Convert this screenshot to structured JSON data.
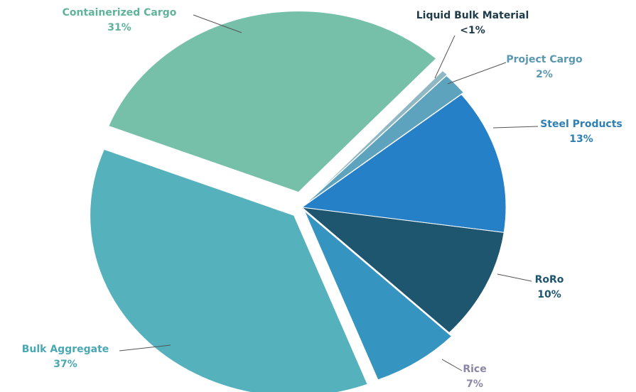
{
  "chart_data": {
    "type": "pie",
    "categories": [
      "Containerized Cargo",
      "Liquid Bulk Material",
      "Project Cargo",
      "Steel Products",
      "RoRo",
      "Rice",
      "Bulk Aggregate"
    ],
    "values": [
      31,
      0.5,
      2,
      13,
      10,
      7,
      37
    ],
    "value_labels": [
      "31%",
      "<1%",
      "2%",
      "13%",
      "10%",
      "7%",
      "37%"
    ],
    "colors": [
      "#76bfa9",
      "#8fb8c4",
      "#5da3be",
      "#2580c8",
      "#1e5670",
      "#3595c0",
      "#55b2bd"
    ]
  }
}
